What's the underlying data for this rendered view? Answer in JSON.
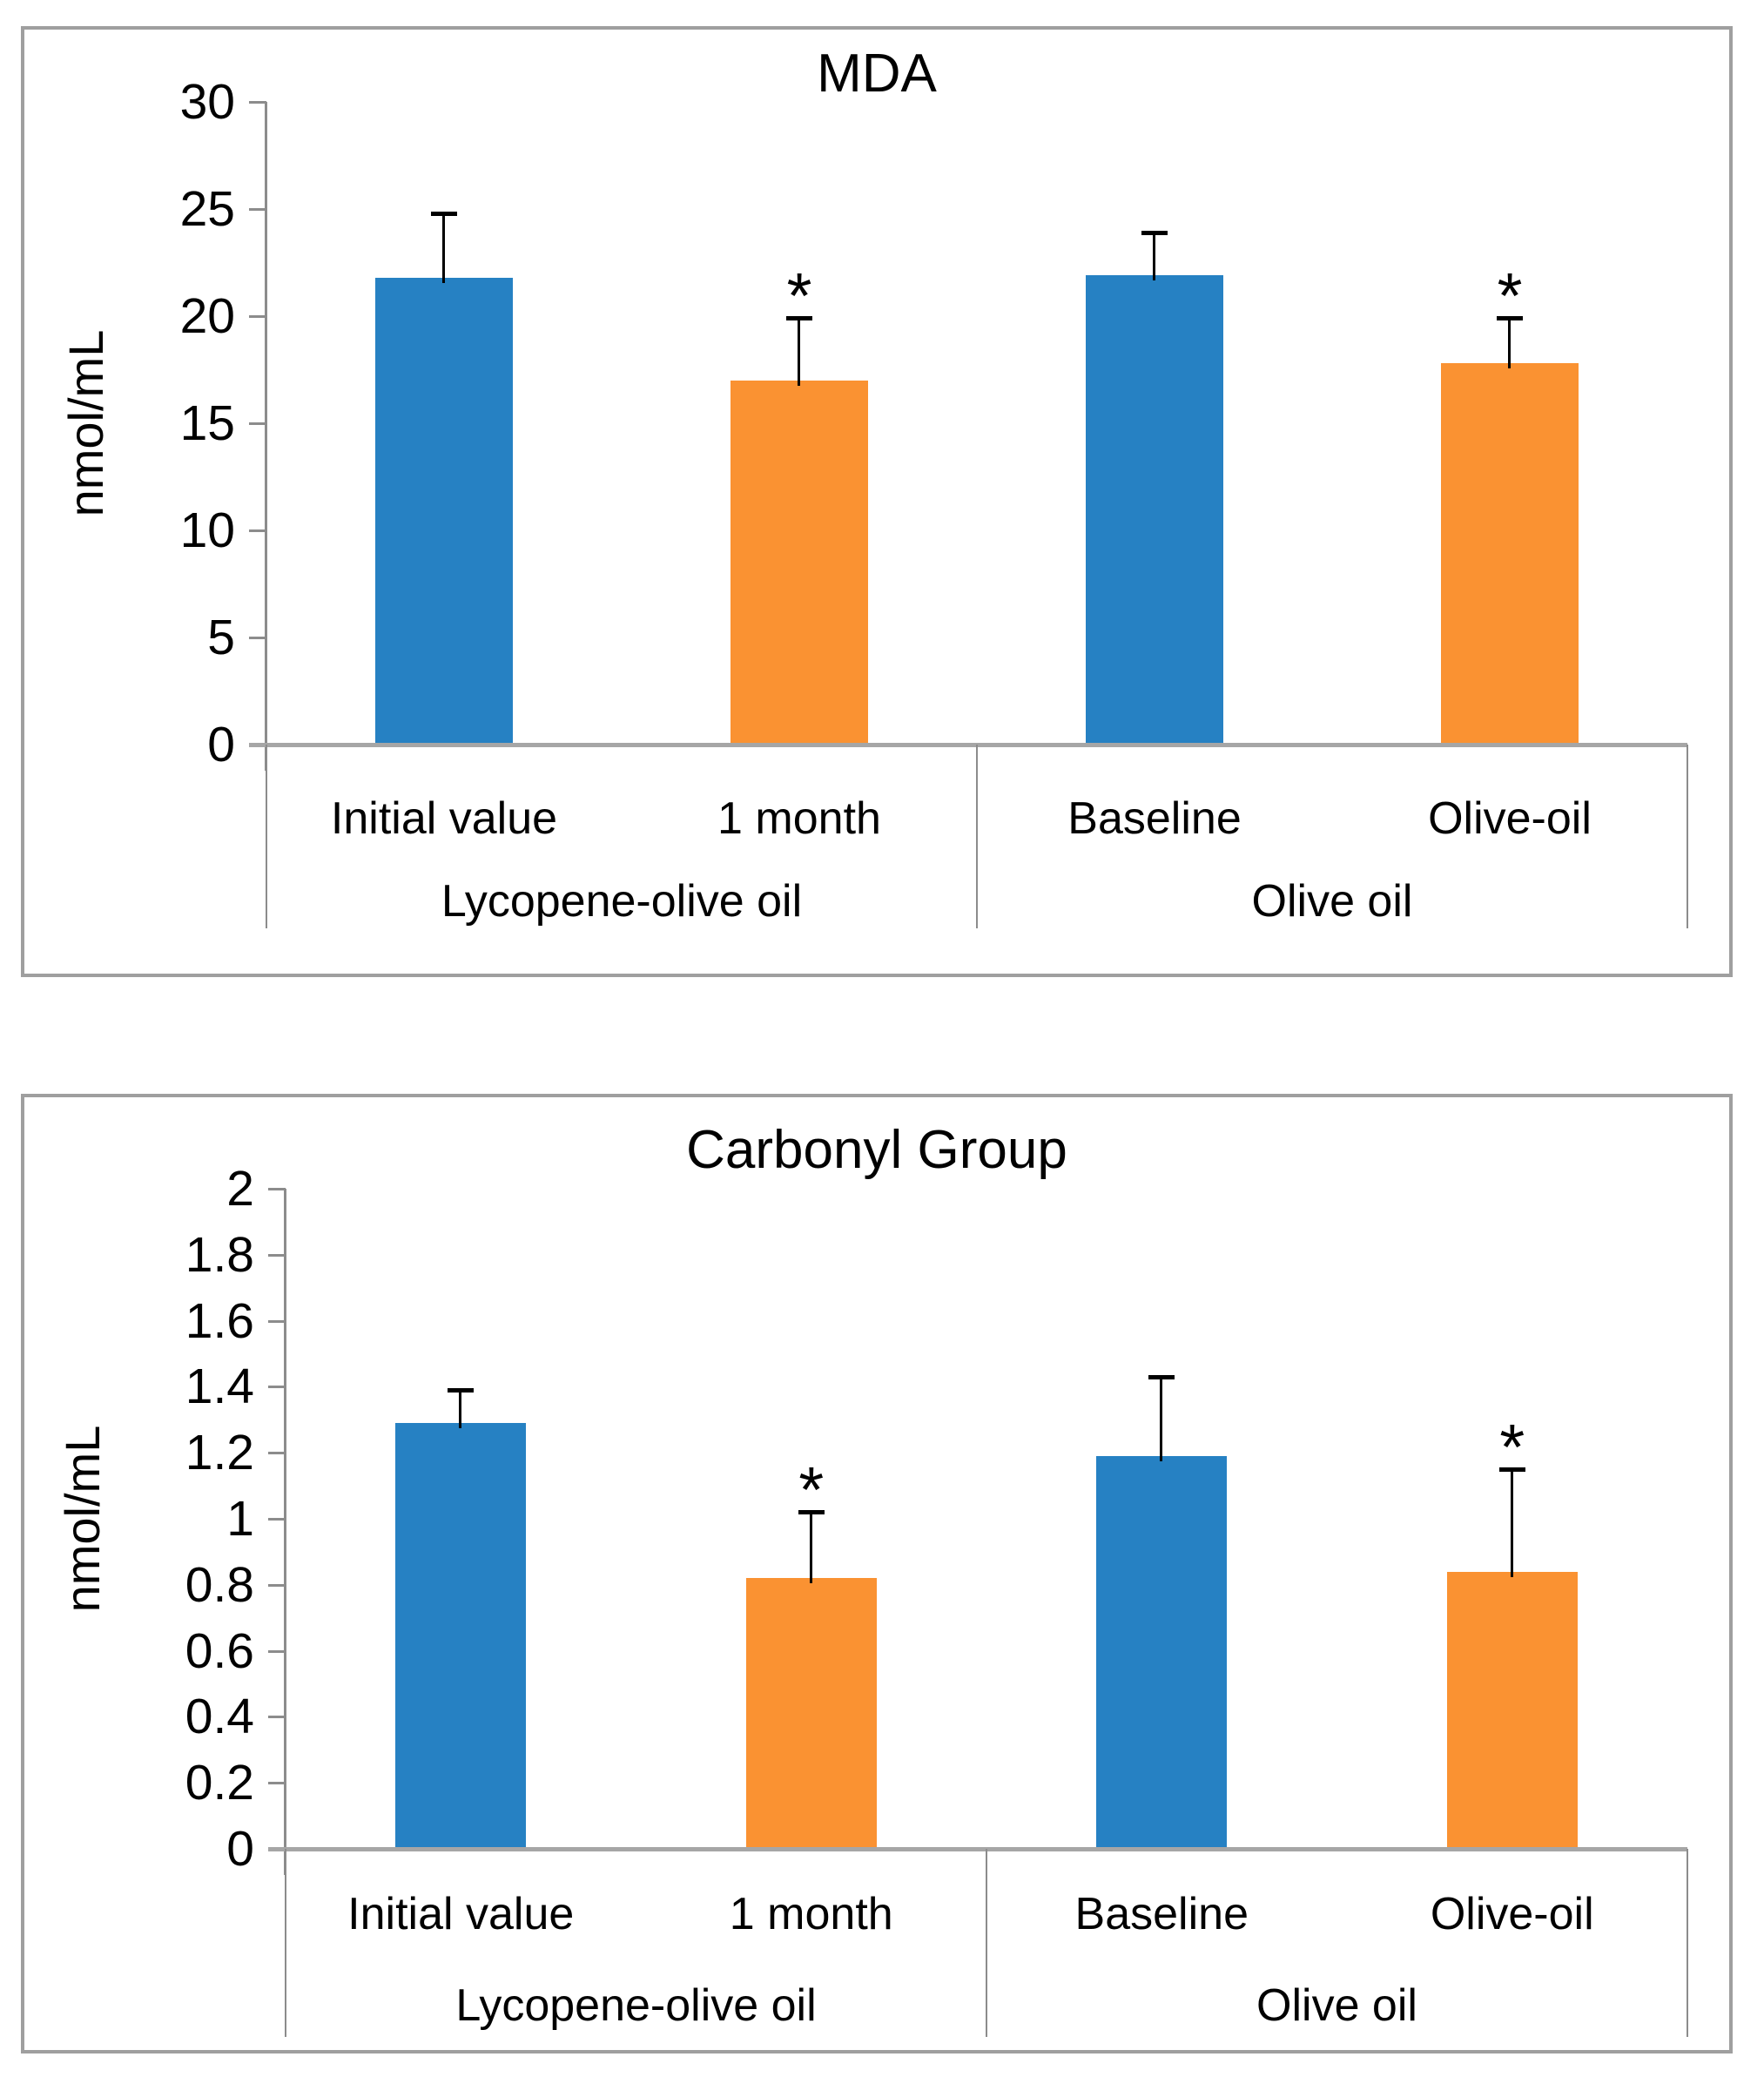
{
  "colors": {
    "series_blue": "#2681c3",
    "series_orange": "#fa9232",
    "error_bar": "#000000",
    "axis_line": "#8c8c8c",
    "baseline": "#a6a6a6",
    "panel_border": "#9f9f9f",
    "text": "#000000"
  },
  "chart_data": [
    {
      "type": "bar",
      "title": "MDA",
      "ylabel": "nmol/mL",
      "ylim": [
        0,
        30
      ],
      "ytick_step": 5,
      "ytick_labels": [
        "30",
        "25",
        "20",
        "15",
        "10",
        "5",
        "0"
      ],
      "grid": false,
      "legend": "none",
      "significance_marker": "*",
      "groups": [
        {
          "label": "Lycopene-olive oil",
          "bars": [
            {
              "category": "Initial value",
              "value": 21.8,
              "error_plus": 3.0,
              "significant": false,
              "color_role": "blue"
            },
            {
              "category": "1 month",
              "value": 17.0,
              "error_plus": 2.9,
              "significant": true,
              "color_role": "orange"
            }
          ]
        },
        {
          "label": "Olive oil",
          "bars": [
            {
              "category": "Baseline",
              "value": 21.9,
              "error_plus": 2.0,
              "significant": false,
              "color_role": "blue"
            },
            {
              "category": "Olive-oil",
              "value": 17.8,
              "error_plus": 2.1,
              "significant": true,
              "color_role": "orange"
            }
          ]
        }
      ]
    },
    {
      "type": "bar",
      "title": "Carbonyl Group",
      "ylabel": "nmol/mL",
      "ylim": [
        0,
        2
      ],
      "ytick_step": 0.2,
      "ytick_labels": [
        "2",
        "1.8",
        "1.6",
        "1.4",
        "1.2",
        "1",
        "0.8",
        "0.6",
        "0.4",
        "0.2",
        "0"
      ],
      "grid": false,
      "legend": "none",
      "significance_marker": "*",
      "groups": [
        {
          "label": "Lycopene-olive oil",
          "bars": [
            {
              "category": "Initial value",
              "value": 1.29,
              "error_plus": 0.1,
              "significant": false,
              "color_role": "blue"
            },
            {
              "category": "1 month",
              "value": 0.82,
              "error_plus": 0.2,
              "significant": true,
              "color_role": "orange"
            }
          ]
        },
        {
          "label": "Olive oil",
          "bars": [
            {
              "category": "Baseline",
              "value": 1.19,
              "error_plus": 0.24,
              "significant": false,
              "color_role": "blue"
            },
            {
              "category": "Olive-oil",
              "value": 0.84,
              "error_plus": 0.31,
              "significant": true,
              "color_role": "orange"
            }
          ]
        }
      ]
    }
  ]
}
